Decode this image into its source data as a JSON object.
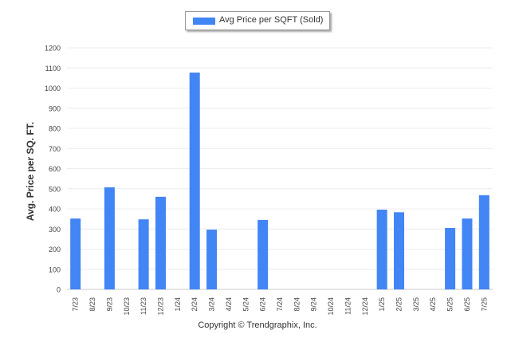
{
  "chart_data": {
    "type": "bar",
    "legend": "Avg Price per SQFT (Sold)",
    "legend_position": "top-center",
    "ylabel": "Avg. Price per SQ. FT.",
    "xlabel": "",
    "ylim": [
      0,
      1200
    ],
    "ytick_step": 100,
    "grid": true,
    "color": "#4285F4",
    "categories": [
      "7/23",
      "8/23",
      "9/23",
      "10/23",
      "11/23",
      "12/23",
      "1/24",
      "2/24",
      "3/24",
      "4/24",
      "5/24",
      "6/24",
      "7/24",
      "8/24",
      "9/24",
      "10/24",
      "11/24",
      "12/24",
      "1/25",
      "2/25",
      "3/25",
      "4/25",
      "5/25",
      "6/25",
      "7/25"
    ],
    "values": [
      352,
      null,
      507,
      null,
      348,
      460,
      null,
      1077,
      297,
      null,
      null,
      345,
      null,
      null,
      null,
      null,
      null,
      null,
      396,
      383,
      null,
      null,
      305,
      352,
      468
    ]
  },
  "footer": "Copyright © Trendgraphix, Inc."
}
